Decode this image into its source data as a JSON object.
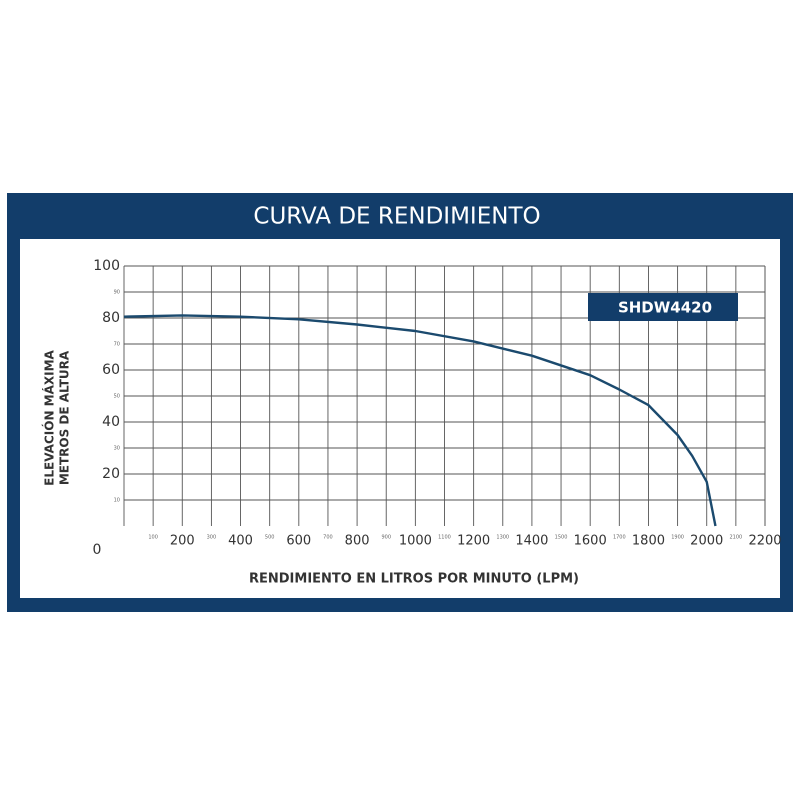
{
  "chart_data": {
    "type": "line",
    "title": "CURVA DE RENDIMIENTO",
    "xlabel": "RENDIMIENTO EN LITROS POR MINUTO (LPM)",
    "ylabel": [
      "ELEVACIÓN MÁXIMA",
      "METROS DE ALTURA"
    ],
    "x": [
      0,
      200,
      400,
      600,
      800,
      1000,
      1200,
      1400,
      1600,
      1700,
      1800,
      1900,
      1950,
      2000,
      2030
    ],
    "series": [
      {
        "name": "SHDW4420",
        "color": "#1b4a6e",
        "values": [
          80.5,
          81,
          80.5,
          79.5,
          77.5,
          75,
          71,
          65.5,
          58,
          52.5,
          46.5,
          35,
          27,
          17,
          0
        ]
      }
    ],
    "xlim": [
      0,
      2200
    ],
    "ylim": [
      0,
      100
    ],
    "xticks": [
      200,
      400,
      600,
      800,
      1000,
      1200,
      1400,
      1600,
      1800,
      2000,
      2200
    ],
    "xticks_minor": [
      100,
      300,
      500,
      700,
      900,
      1100,
      1300,
      1500,
      1700,
      1900,
      2100
    ],
    "yticks": [
      0,
      20,
      40,
      60,
      80,
      100
    ],
    "yticks_minor": [
      10,
      30,
      50,
      70,
      90
    ],
    "grid": true
  }
}
